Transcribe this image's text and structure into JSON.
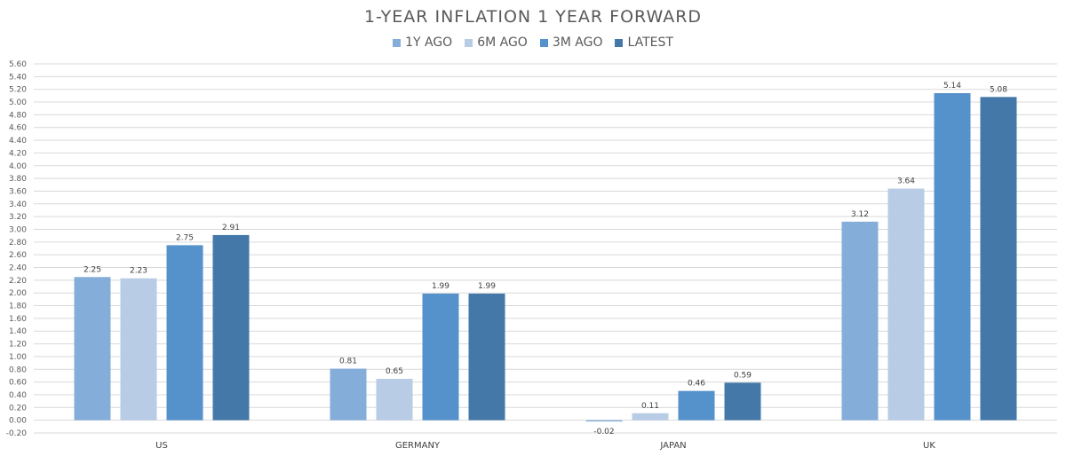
{
  "chart_data": {
    "type": "bar",
    "title": "1-YEAR INFLATION 1 YEAR FORWARD",
    "categories": [
      "US",
      "GERMANY",
      "JAPAN",
      "UK"
    ],
    "series": [
      {
        "name": "1Y AGO",
        "color": "#85ADDA",
        "values": [
          2.25,
          0.81,
          -0.02,
          3.12
        ]
      },
      {
        "name": "6M AGO",
        "color": "#B8CCE6",
        "values": [
          2.23,
          0.65,
          0.11,
          3.64
        ]
      },
      {
        "name": "3M AGO",
        "color": "#5591CA",
        "values": [
          2.75,
          1.99,
          0.46,
          5.14
        ]
      },
      {
        "name": "LATEST",
        "color": "#4478A8",
        "values": [
          2.91,
          1.99,
          0.59,
          5.08
        ]
      }
    ],
    "data_labels": [
      [
        "2.25",
        "0.81",
        "-0.02",
        "3.12"
      ],
      [
        "2.23",
        "0.65",
        "0.11",
        "3.64"
      ],
      [
        "2.75",
        "1.99",
        "0.46",
        "5.14"
      ],
      [
        "2.91",
        "1.99",
        "0.59",
        "5.08"
      ]
    ],
    "ylim": [
      -0.2,
      5.6
    ],
    "ytick_step": 0.2,
    "grid": true,
    "legend_position": "top-center",
    "xlabel": "",
    "ylabel": ""
  }
}
